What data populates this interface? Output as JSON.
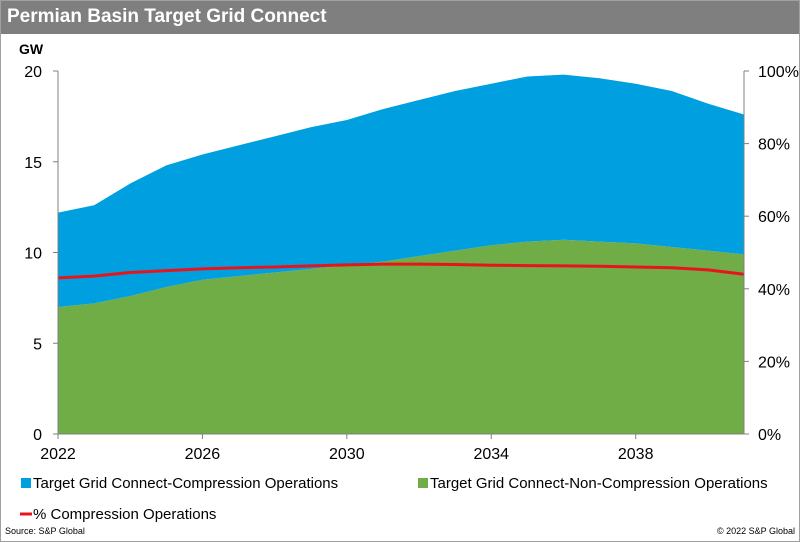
{
  "chart_data": {
    "type": "area",
    "title": "Permian Basin Target Grid Connect",
    "ylabel": "GW",
    "x": [
      2022,
      2023,
      2024,
      2025,
      2026,
      2027,
      2028,
      2029,
      2030,
      2031,
      2032,
      2033,
      2034,
      2035,
      2036,
      2037,
      2038,
      2039,
      2040,
      2041
    ],
    "x_ticks": [
      "2022",
      "2026",
      "2030",
      "2034",
      "2038"
    ],
    "y_ticks": [
      "0",
      "5",
      "10",
      "15",
      "20"
    ],
    "y2_ticks": [
      "0%",
      "20%",
      "40%",
      "60%",
      "80%",
      "100%"
    ],
    "ylim": [
      0,
      20
    ],
    "y2lim": [
      0,
      100
    ],
    "stacked": true,
    "series": [
      {
        "name": "Target Grid Connect-Non-Compression Operations",
        "axis": "left",
        "color": "#70ad47",
        "values": [
          7.0,
          7.2,
          7.6,
          8.1,
          8.5,
          8.7,
          8.9,
          9.1,
          9.3,
          9.5,
          9.8,
          10.1,
          10.4,
          10.6,
          10.7,
          10.6,
          10.5,
          10.3,
          10.1,
          9.9
        ]
      },
      {
        "name": "Target Grid Connect-Compression Operations",
        "axis": "left",
        "color": "#009fdf",
        "values": [
          5.2,
          5.4,
          6.2,
          6.7,
          6.9,
          7.2,
          7.5,
          7.8,
          8.0,
          8.4,
          8.6,
          8.8,
          8.9,
          9.1,
          9.1,
          9.0,
          8.8,
          8.6,
          8.1,
          7.7
        ]
      },
      {
        "name": "% Compression Operations",
        "axis": "right",
        "type": "line",
        "color": "#e8141b",
        "values": [
          43,
          43.5,
          44.5,
          45,
          45.5,
          45.8,
          46,
          46.3,
          46.6,
          46.8,
          46.8,
          46.7,
          46.5,
          46.4,
          46.3,
          46.2,
          46,
          45.8,
          45.2,
          44
        ]
      }
    ],
    "grid": false,
    "legend_placement": "bottom"
  },
  "footer": {
    "source": "Source: S&P Global",
    "copyright": "© 2022 S&P Global"
  }
}
